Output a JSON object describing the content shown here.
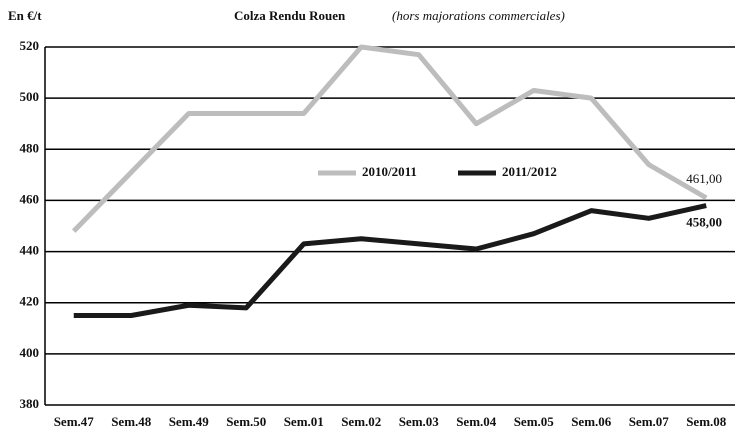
{
  "chart_data": {
    "type": "line",
    "title": "Colza Rendu Rouen",
    "subtitle": "(hors majorations commerciales)",
    "y_label": "En €/t",
    "categories": [
      "Sem.47",
      "Sem.48",
      "Sem.49",
      "Sem.50",
      "Sem.01",
      "Sem.02",
      "Sem.03",
      "Sem.04",
      "Sem.05",
      "Sem.06",
      "Sem.07",
      "Sem.08"
    ],
    "series": [
      {
        "name": "2010/2011",
        "color": "#bdbdbd",
        "values": [
          448,
          471,
          494,
          494,
          494,
          520,
          517,
          490,
          503,
          500,
          474,
          461
        ],
        "value_labels": [
          null,
          null,
          null,
          null,
          null,
          null,
          null,
          null,
          null,
          null,
          null,
          "461,00"
        ]
      },
      {
        "name": "2011/2012",
        "color": "#1a1a1a",
        "values": [
          415,
          415,
          419,
          418,
          443,
          445,
          443,
          441,
          447,
          456,
          453,
          458
        ],
        "value_labels": [
          null,
          null,
          null,
          null,
          null,
          null,
          null,
          null,
          null,
          null,
          null,
          "458,00"
        ]
      }
    ],
    "ylim": [
      380,
      520
    ],
    "yticks": [
      380,
      400,
      420,
      440,
      460,
      480,
      500,
      520
    ],
    "grid": true
  }
}
